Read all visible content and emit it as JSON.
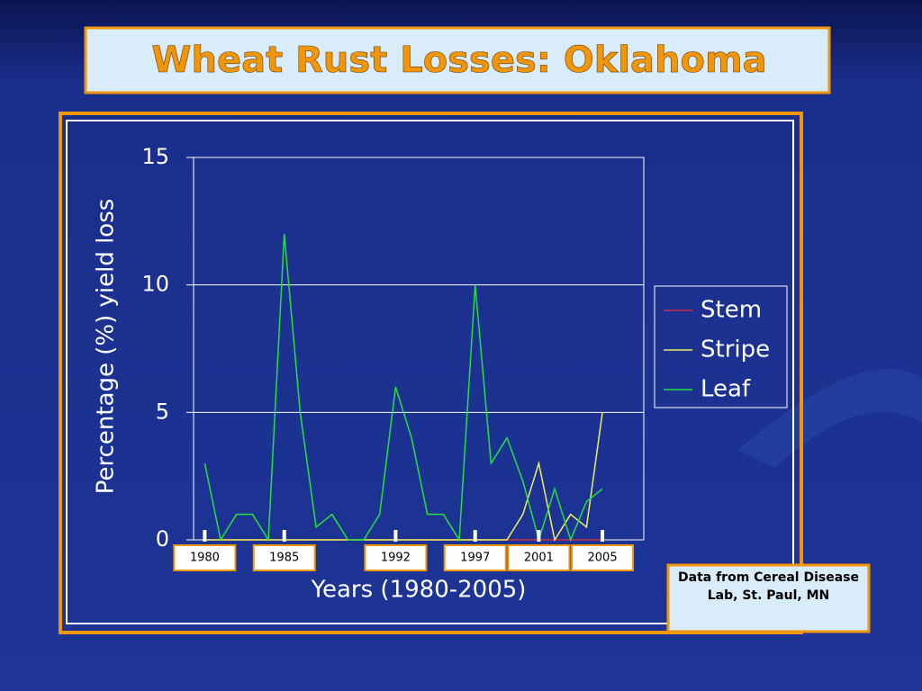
{
  "chart_data": {
    "type": "line",
    "title": "Wheat Rust Losses: Oklahoma",
    "y_label": "Percentage (%) yield loss",
    "x_label": "Years (1980-2005)",
    "note": "Data from Cereal Disease Lab, St. Paul, MN",
    "x": [
      1980,
      1981,
      1982,
      1983,
      1984,
      1985,
      1986,
      1987,
      1988,
      1989,
      1990,
      1991,
      1992,
      1993,
      1994,
      1995,
      1996,
      1997,
      1998,
      1999,
      2000,
      2001,
      2002,
      2003,
      2004,
      2005
    ],
    "xlim": [
      1979.3,
      2007.6
    ],
    "xticks": [
      1980,
      1985,
      1992,
      1997,
      2001,
      2005
    ],
    "ylim": [
      0,
      15
    ],
    "yticks": [
      0,
      5,
      10,
      15
    ],
    "grid": true,
    "legend": "right",
    "series": [
      {
        "name": "Stem",
        "color": "#c8304a",
        "values": [
          0,
          0,
          0,
          0,
          0,
          0,
          0,
          0,
          0,
          0,
          0,
          0,
          0,
          0,
          0,
          0,
          0,
          0,
          0,
          0,
          0,
          0,
          0,
          0,
          0,
          0
        ]
      },
      {
        "name": "Stripe",
        "color": "#f0f060",
        "values": [
          0,
          0,
          0,
          0,
          0,
          0,
          0,
          0,
          0,
          0,
          0,
          0,
          0,
          0,
          0,
          0,
          0,
          0,
          0,
          0,
          1,
          3,
          0,
          1,
          0.5,
          5
        ]
      },
      {
        "name": "Leaf",
        "color": "#22e040",
        "values": [
          3,
          0,
          1,
          1,
          0,
          12,
          5,
          0.5,
          1,
          0,
          0,
          1,
          6,
          4,
          1,
          1,
          0,
          10,
          3,
          4,
          2.3,
          0,
          2,
          0,
          1.5,
          2
        ]
      }
    ]
  }
}
